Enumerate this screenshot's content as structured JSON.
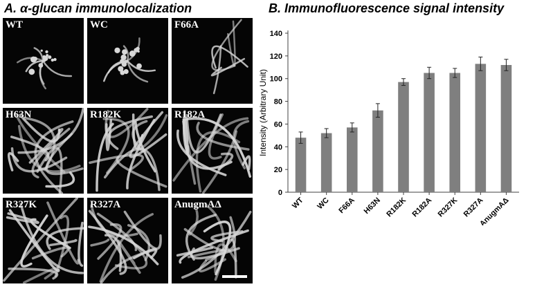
{
  "panel_a": {
    "title": "A. α-glucan immunolocalization",
    "images": [
      {
        "label": "WT"
      },
      {
        "label": "WC"
      },
      {
        "label": "F66A"
      },
      {
        "label": "H63N"
      },
      {
        "label": "R182K"
      },
      {
        "label": "R182A"
      },
      {
        "label": "R327K"
      },
      {
        "label": "R327A"
      },
      {
        "label": "AnugmAΔ"
      }
    ]
  },
  "panel_b": {
    "title": "B. Immunofluorescence signal intensity"
  },
  "colors": {
    "bar": "#7f7f7f",
    "axis": "#404040",
    "image_bg": "#050505",
    "hyphae": "#d8d8d8"
  },
  "chart_data": {
    "type": "bar",
    "title": "B. Immunofluorescence signal intensity",
    "xlabel": "",
    "ylabel": "Intensity (Arbitrary Unit)",
    "categories": [
      "WT",
      "WC",
      "F66A",
      "H63N",
      "R182K",
      "R182A",
      "R327K",
      "R327A",
      "AnugmAΔ"
    ],
    "values": [
      48,
      52,
      57,
      72,
      97,
      105,
      105,
      113,
      112
    ],
    "error": [
      5,
      4,
      4,
      6,
      3,
      5,
      4,
      6,
      5
    ],
    "ylim": [
      0,
      140
    ],
    "yticks": [
      0,
      20,
      40,
      60,
      80,
      100,
      120,
      140
    ],
    "grid": false,
    "legend": "none"
  }
}
